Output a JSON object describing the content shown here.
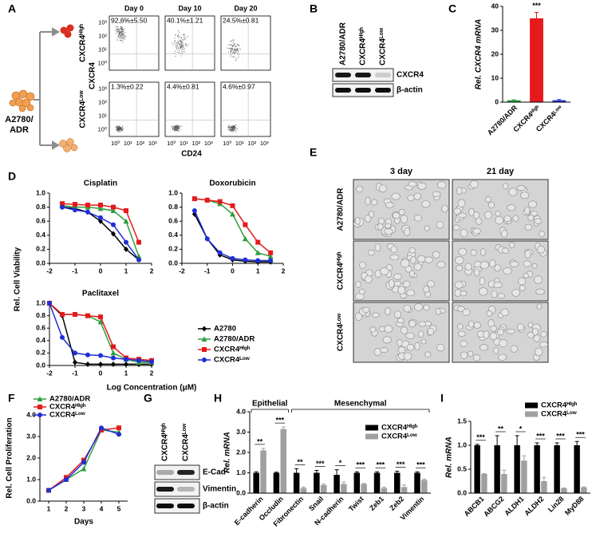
{
  "panel_labels": [
    "A",
    "B",
    "C",
    "D",
    "E",
    "F",
    "G",
    "H",
    "I"
  ],
  "flow": {
    "parent_label": [
      "A2780/",
      "ADR"
    ],
    "days": [
      "Day 0",
      "Day 10",
      "Day 20"
    ],
    "rows": [
      {
        "label": "CXCR4ᴴⁱᵍʰ",
        "percents": [
          "92.6%±5.50",
          "40.1%±1.21",
          "24.5%±0.81"
        ]
      },
      {
        "label": "CXCR4ᴸᵒʷ",
        "percents": [
          "1.3%±0.22",
          "4.4%±0.81",
          "4.6%±0.97"
        ]
      }
    ],
    "ylabel": "CXCR4",
    "xlabel": "CD24",
    "ticks": [
      "10⁰",
      "10¹",
      "10²",
      "10³"
    ]
  },
  "blot_b": {
    "lanes": [
      "A2780/ADR",
      "CXCR4ᴴⁱᵍʰ",
      "CXCR4ᴸᵒʷ"
    ],
    "rows": [
      "CXCR4",
      "β-actin"
    ]
  },
  "micrographs": {
    "columns": [
      "3 day",
      "21 day"
    ],
    "rows": [
      "A2780/ADR",
      "CXCR4ᴴⁱᵍʰ",
      "CXCR4ᴸᵒʷ"
    ]
  },
  "blot_g": {
    "lanes": [
      "CXCR4ᴴⁱᵍʰ",
      "CXCR4ᴸᵒʷ"
    ],
    "rows": [
      "E-Cad",
      "Vimentin",
      "β-actin"
    ]
  },
  "chart_data": [
    {
      "type": "bar",
      "ylabel": "Rel. CXCR4 mRNA",
      "categories": [
        "A2780/ADR",
        "CXCR4ᴴⁱᵍʰ",
        "CXCR4ᴸᵒʷ"
      ],
      "values": [
        0.8,
        35,
        0.8
      ],
      "errors": [
        0.2,
        2.5,
        0.3
      ],
      "colors": [
        "#2e9e3e",
        "#e41a1c",
        "#1f2fd6"
      ],
      "annotations": [
        null,
        "***",
        null
      ],
      "ylim": [
        0,
        40
      ],
      "yticks": [
        0,
        10,
        20,
        30,
        40
      ]
    },
    {
      "type": "line",
      "ylabel": "Rel. Cell Viability",
      "xlabel": "Log Concentration (μM)",
      "xlim": [
        -2,
        2
      ],
      "xticks": [
        -2,
        -1,
        0,
        1,
        2
      ],
      "ylim": [
        0,
        1
      ],
      "yticks": [
        {
          "value": 0,
          "label": "0.0"
        },
        {
          "value": 0.2,
          "label": "0.2"
        },
        {
          "value": 0.4,
          "label": "0.4"
        },
        {
          "value": 0.6,
          "label": "0.6"
        },
        {
          "value": 0.8,
          "label": "0.8"
        },
        {
          "value": 1,
          "label": "1.0"
        }
      ],
      "series": [
        {
          "name": "A2780",
          "color": "#000000",
          "marker": "diamond"
        },
        {
          "name": "A2780/ADR",
          "color": "#2e9e3e",
          "marker": "triangle"
        },
        {
          "name": "CXCR4ᴴⁱᵍʰ",
          "color": "#e41a1c",
          "marker": "square"
        },
        {
          "name": "CXCR4ᴸᵒʷ",
          "color": "#1f2fd6",
          "marker": "circle"
        }
      ],
      "subplots": [
        {
          "title": "Cisplatin",
          "x": [
            -1.5,
            -1,
            -0.5,
            0,
            0.5,
            1,
            1.5
          ],
          "values": [
            [
              0.8,
              0.78,
              0.73,
              0.6,
              0.42,
              0.2,
              0.05
            ],
            [
              0.82,
              0.8,
              0.8,
              0.78,
              0.75,
              0.6,
              0.1
            ],
            [
              0.85,
              0.84,
              0.83,
              0.83,
              0.8,
              0.75,
              0.3
            ],
            [
              0.8,
              0.76,
              0.73,
              0.65,
              0.55,
              0.3,
              0.05
            ]
          ]
        },
        {
          "title": "Doxorubicin",
          "x": [
            -1.5,
            -1,
            -0.5,
            0,
            0.5,
            1,
            1.5
          ],
          "values": [
            [
              0.7,
              0.35,
              0.12,
              0.05,
              0.03,
              0.02,
              0.02
            ],
            [
              0.92,
              0.9,
              0.85,
              0.7,
              0.35,
              0.15,
              0.1
            ],
            [
              0.92,
              0.9,
              0.88,
              0.82,
              0.55,
              0.3,
              0.15
            ],
            [
              0.75,
              0.35,
              0.15,
              0.07,
              0.05,
              0.04,
              0.04
            ]
          ]
        },
        {
          "title": "Paclitaxel",
          "x": [
            -2,
            -1.5,
            -1,
            -0.5,
            0,
            0.5,
            1,
            1.5,
            2
          ],
          "values": [
            [
              1.0,
              0.8,
              0.05,
              0.02,
              0.02,
              0.02,
              0.02,
              0.02,
              0.02
            ],
            [
              1.0,
              0.82,
              0.82,
              0.8,
              0.7,
              0.2,
              0.1,
              0.05,
              0.05
            ],
            [
              1.0,
              0.82,
              0.82,
              0.8,
              0.78,
              0.3,
              0.12,
              0.1,
              0.08
            ],
            [
              1.0,
              0.45,
              0.2,
              0.17,
              0.16,
              0.12,
              0.1,
              0.08,
              0.06
            ]
          ]
        }
      ]
    },
    {
      "type": "line",
      "ylabel": "Rel. Cell Proliferation",
      "xlabel": "Days",
      "x": [
        1,
        2,
        3,
        4,
        5
      ],
      "xlim": [
        0.5,
        5.5
      ],
      "xticks": [
        1,
        2,
        3,
        4,
        5
      ],
      "ylim": [
        0,
        4
      ],
      "yticks": [
        {
          "value": 0,
          "label": "0.0"
        },
        {
          "value": 1,
          "label": "1.0"
        },
        {
          "value": 2,
          "label": "2.0"
        },
        {
          "value": 3,
          "label": "3.0"
        },
        {
          "value": 4,
          "label": "4.0"
        }
      ],
      "legend": "upper left",
      "series": [
        {
          "name": "A2780/ADR",
          "color": "#2e9e3e",
          "marker": "triangle",
          "values": [
            0.5,
            1.0,
            1.5,
            3.3,
            3.2
          ]
        },
        {
          "name": "CXCR4ᴴⁱᵍʰ",
          "color": "#e41a1c",
          "marker": "square",
          "values": [
            0.5,
            1.1,
            1.9,
            3.3,
            3.4
          ]
        },
        {
          "name": "CXCR4ᴸᵒʷ",
          "color": "#1f2fd6",
          "marker": "circle",
          "values": [
            0.5,
            1.0,
            1.8,
            3.4,
            3.1
          ]
        }
      ]
    },
    {
      "type": "bar",
      "ylabel": "Rel. mRNA",
      "categories": [
        "E-cadherin",
        "Occludin",
        "Fibronectin",
        "Snail",
        "N-cadherin",
        "Twist",
        "Zeb1",
        "Zeb2",
        "Vimentin"
      ],
      "series": [
        {
          "name": "CXCR4ᴴⁱᵍʰ",
          "color": "#000000",
          "values": [
            1,
            1,
            1,
            1,
            0.9,
            1,
            1,
            1,
            1
          ],
          "errors": [
            0.05,
            0.03,
            0.2,
            0.12,
            0.25,
            0.05,
            0.05,
            0.08,
            0.05
          ]
        },
        {
          "name": "CXCR4ᴸᵒʷ",
          "color": "#a0a0a0",
          "values": [
            2.1,
            3.15,
            0.25,
            0.4,
            0.45,
            0.45,
            0.25,
            0.3,
            0.65
          ],
          "errors": [
            0.1,
            0.1,
            0.05,
            0.05,
            0.1,
            0.03,
            0.05,
            0.1,
            0.05
          ]
        }
      ],
      "annotations": [
        "**",
        "***",
        "**",
        "***",
        "*",
        "***",
        "***",
        "***",
        "***"
      ],
      "groups": [
        {
          "label": "Epithelial",
          "span": [
            0,
            1
          ]
        },
        {
          "label": "Mesenchymal",
          "span": [
            2,
            8
          ]
        }
      ],
      "legend": "upper right",
      "ylim": [
        0,
        4
      ],
      "yticks": [
        {
          "value": 0,
          "label": "0.0"
        },
        {
          "value": 1,
          "label": "1.0"
        },
        {
          "value": 2,
          "label": "2.0"
        },
        {
          "value": 3,
          "label": "3.0"
        },
        {
          "value": 4,
          "label": "4.0"
        }
      ]
    },
    {
      "type": "bar",
      "ylabel": "Rel. mRNA",
      "categories": [
        "ABCB1",
        "ABCG2",
        "ALDH1",
        "ALDH2",
        "Lin28",
        "MyD88"
      ],
      "series": [
        {
          "name": "CXCR4ᴴⁱᵍʰ",
          "color": "#000000",
          "values": [
            1,
            1,
            1,
            1,
            1,
            1
          ],
          "errors": [
            0.02,
            0.2,
            0.2,
            0.05,
            0.05,
            0.08
          ]
        },
        {
          "name": "CXCR4ᴸᵒʷ",
          "color": "#a0a0a0",
          "values": [
            0.4,
            0.4,
            0.68,
            0.25,
            0.1,
            0.12
          ],
          "errors": [
            0.01,
            0.08,
            0.1,
            0.08,
            0.01,
            0.01
          ]
        }
      ],
      "annotations": [
        "***",
        "**",
        "*",
        "***",
        "***",
        "***"
      ],
      "legend": "upper right",
      "ylim": [
        0,
        1.5
      ],
      "yticks": [
        {
          "value": 0,
          "label": "0.0"
        },
        {
          "value": 0.5,
          "label": "0.5"
        },
        {
          "value": 1,
          "label": "1.0"
        },
        {
          "value": 1.5,
          "label": "1.5"
        }
      ]
    }
  ]
}
